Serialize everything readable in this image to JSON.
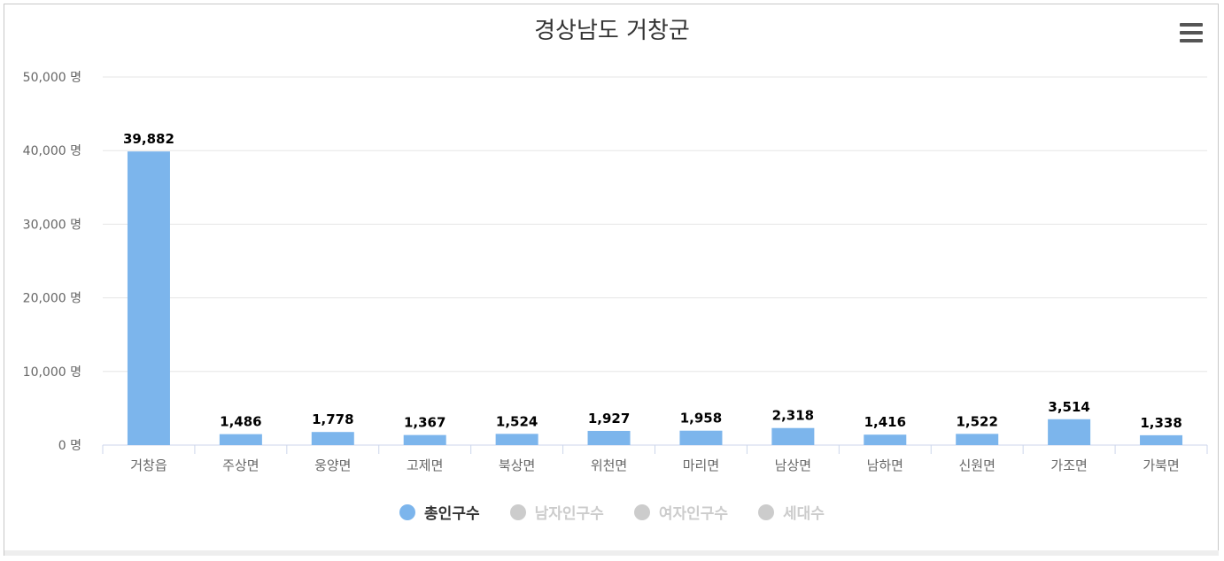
{
  "chart_data": {
    "type": "bar",
    "title": "경상남도 거창군",
    "categories": [
      "거창읍",
      "주상면",
      "웅양면",
      "고제면",
      "북상면",
      "위천면",
      "마리면",
      "남상면",
      "남하면",
      "신원면",
      "가조면",
      "가북면"
    ],
    "series": [
      {
        "name": "총인구수",
        "values": [
          39882,
          1486,
          1778,
          1367,
          1524,
          1927,
          1958,
          2318,
          1416,
          1522,
          3514,
          1338
        ]
      }
    ],
    "data_labels": [
      "39,882",
      "1,486",
      "1,778",
      "1,367",
      "1,524",
      "1,927",
      "1,958",
      "2,318",
      "1,416",
      "1,522",
      "3,514",
      "1,338"
    ],
    "ylim": [
      0,
      50000
    ],
    "y_ticks": [
      0,
      10000,
      20000,
      30000,
      40000,
      50000
    ],
    "y_tick_labels": [
      "0 명",
      "10,000 명",
      "20,000 명",
      "30,000 명",
      "40,000 명",
      "50,000 명"
    ],
    "grid": true,
    "legend_position": "bottom",
    "colors": {
      "bar": "#7cb5ec",
      "grid": "#e6e6e6",
      "axis": "#ccd6eb",
      "legend_active": "#333333",
      "legend_inactive": "#cccccc"
    }
  },
  "legend": [
    {
      "label": "총인구수",
      "active": true,
      "color": "#7cb5ec"
    },
    {
      "label": "남자인구수",
      "active": false,
      "color": "#cccccc"
    },
    {
      "label": "여자인구수",
      "active": false,
      "color": "#cccccc"
    },
    {
      "label": "세대수",
      "active": false,
      "color": "#cccccc"
    }
  ],
  "menu_icon": "hamburger-icon"
}
